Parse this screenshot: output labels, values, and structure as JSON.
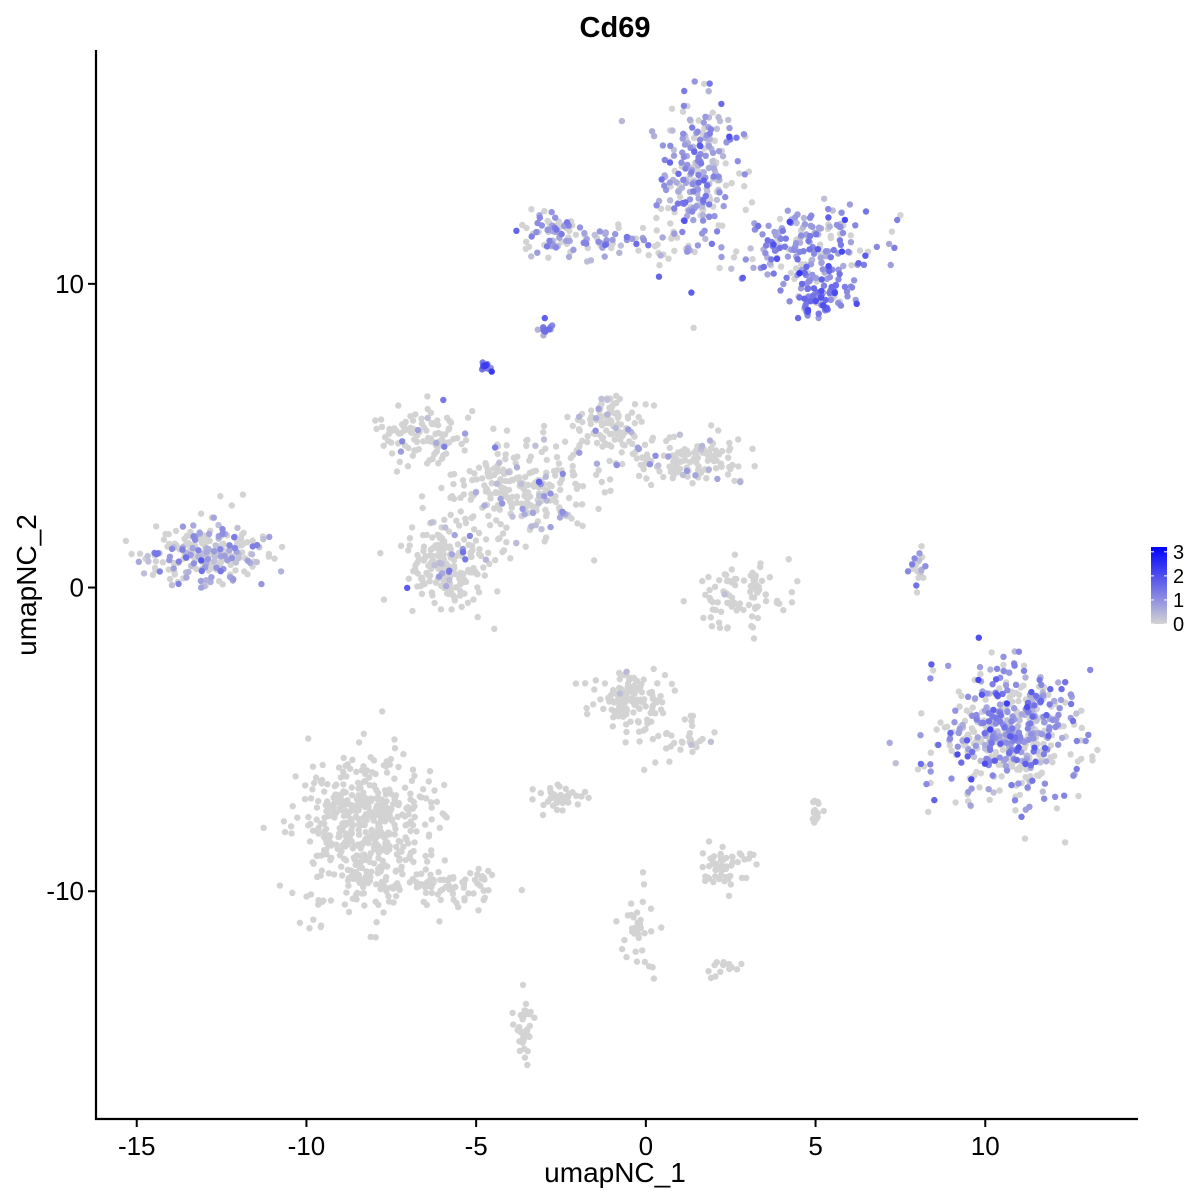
{
  "chart_data": {
    "type": "scatter",
    "title": "Cd69",
    "xlabel": "umapNC_1",
    "ylabel": "umapNC_2",
    "xlim": [
      -16.2,
      14.5
    ],
    "ylim": [
      -17.5,
      17.7
    ],
    "x_ticks": [
      -15,
      -10,
      -5,
      0,
      5,
      10
    ],
    "y_ticks": [
      -10,
      0,
      10
    ],
    "x_tick_labels": [
      "-15",
      "-10",
      "-5",
      "0",
      "5",
      "10"
    ],
    "y_tick_labels": [
      "-10",
      "0",
      "10"
    ],
    "grid": false,
    "legend": {
      "position": "right",
      "type": "colorbar",
      "min": 0,
      "max": 3.2,
      "ticks": [
        0,
        1,
        2,
        3
      ],
      "tick_labels": [
        "0",
        "1",
        "2",
        "3"
      ]
    },
    "colors": {
      "low": "#d3d3d3",
      "high": "#0000ff",
      "axis": "#000000"
    },
    "clusters": [
      {
        "id": "top-right-mass",
        "cx": 1.6,
        "cy": 13.6,
        "sx": 0.55,
        "sy": 1.25,
        "n": 240,
        "expr": 0.9,
        "p_expr": 0.7
      },
      {
        "id": "top-right-arm",
        "cx": 4.7,
        "cy": 11.3,
        "sx": 0.9,
        "sy": 0.6,
        "n": 190,
        "expr": 1.0,
        "p_expr": 0.75
      },
      {
        "id": "top-right-lobe",
        "cx": 5.2,
        "cy": 9.6,
        "sx": 0.45,
        "sy": 0.4,
        "n": 90,
        "expr": 1.1,
        "p_expr": 0.8
      },
      {
        "id": "top-bridge",
        "cx": -0.8,
        "cy": 11.4,
        "sx": 1.3,
        "sy": 0.3,
        "n": 70,
        "expr": 0.8,
        "p_expr": 0.6
      },
      {
        "id": "top-left-knob",
        "cx": -2.8,
        "cy": 11.7,
        "sx": 0.4,
        "sy": 0.35,
        "n": 60,
        "expr": 0.9,
        "p_expr": 0.55
      },
      {
        "id": "small-blob-a",
        "cx": -2.9,
        "cy": 8.5,
        "sx": 0.12,
        "sy": 0.12,
        "n": 12,
        "expr": 1.2,
        "p_expr": 0.8
      },
      {
        "id": "small-blob-b",
        "cx": -4.7,
        "cy": 7.3,
        "sx": 0.1,
        "sy": 0.1,
        "n": 14,
        "expr": 1.6,
        "p_expr": 0.9
      },
      {
        "id": "left-island",
        "cx": -13.0,
        "cy": 1.1,
        "sx": 0.95,
        "sy": 0.5,
        "n": 240,
        "expr": 0.7,
        "p_expr": 0.45
      },
      {
        "id": "center-hub",
        "cx": -3.6,
        "cy": 3.2,
        "sx": 1.0,
        "sy": 0.8,
        "n": 260,
        "expr": 0.6,
        "p_expr": 0.15
      },
      {
        "id": "center-upper-left-arm",
        "cx": -6.5,
        "cy": 5.0,
        "sx": 0.7,
        "sy": 0.45,
        "n": 110,
        "expr": 0.6,
        "p_expr": 0.08
      },
      {
        "id": "center-upper-right-arm",
        "cx": -1.1,
        "cy": 5.3,
        "sx": 0.55,
        "sy": 0.6,
        "n": 120,
        "expr": 0.6,
        "p_expr": 0.1
      },
      {
        "id": "center-right-arm",
        "cx": 1.4,
        "cy": 4.2,
        "sx": 0.9,
        "sy": 0.35,
        "n": 130,
        "expr": 0.6,
        "p_expr": 0.12
      },
      {
        "id": "center-lower-left-lobe",
        "cx": -5.9,
        "cy": 0.8,
        "sx": 0.6,
        "sy": 0.7,
        "n": 200,
        "expr": 0.6,
        "p_expr": 0.08
      },
      {
        "id": "mid-ring",
        "cx": 2.9,
        "cy": -0.2,
        "sx": 0.7,
        "sy": 0.55,
        "n": 90,
        "expr": 0.5,
        "p_expr": 0.05
      },
      {
        "id": "small-streak-right",
        "cx": 8.0,
        "cy": 0.5,
        "sx": 0.15,
        "sy": 0.4,
        "n": 20,
        "expr": 1.0,
        "p_expr": 0.6
      },
      {
        "id": "right-big-cluster",
        "cx": 10.7,
        "cy": -4.8,
        "sx": 1.0,
        "sy": 1.05,
        "n": 520,
        "expr": 1.0,
        "p_expr": 0.55
      },
      {
        "id": "mid-lower-cluster",
        "cx": -0.6,
        "cy": -3.6,
        "sx": 0.55,
        "sy": 0.45,
        "n": 130,
        "expr": 0.5,
        "p_expr": 0.03
      },
      {
        "id": "mid-lower-tail",
        "cx": 0.8,
        "cy": -4.9,
        "sx": 0.6,
        "sy": 0.4,
        "n": 40,
        "expr": 0.5,
        "p_expr": 0.03
      },
      {
        "id": "bottom-left-big",
        "cx": -8.3,
        "cy": -8.0,
        "sx": 0.95,
        "sy": 1.2,
        "n": 520,
        "expr": 0.4,
        "p_expr": 0.0
      },
      {
        "id": "bottom-left-tail",
        "cx": -5.6,
        "cy": -9.8,
        "sx": 0.7,
        "sy": 0.35,
        "n": 70,
        "expr": 0.4,
        "p_expr": 0.0
      },
      {
        "id": "bottom-mid-small",
        "cx": -2.5,
        "cy": -6.9,
        "sx": 0.3,
        "sy": 0.2,
        "n": 45,
        "expr": 0.4,
        "p_expr": 0.0
      },
      {
        "id": "bottom-mid-right",
        "cx": 2.4,
        "cy": -9.2,
        "sx": 0.35,
        "sy": 0.35,
        "n": 55,
        "expr": 0.4,
        "p_expr": 0.0
      },
      {
        "id": "bottom-streak",
        "cx": -0.2,
        "cy": -11.3,
        "sx": 0.25,
        "sy": 0.9,
        "n": 35,
        "expr": 0.4,
        "p_expr": 0.02
      },
      {
        "id": "bottom-bits-right",
        "cx": 2.2,
        "cy": -12.5,
        "sx": 0.35,
        "sy": 0.2,
        "n": 15,
        "expr": 0.4,
        "p_expr": 0.0
      },
      {
        "id": "bottom-bottom",
        "cx": -3.6,
        "cy": -14.5,
        "sx": 0.15,
        "sy": 0.6,
        "n": 40,
        "expr": 0.4,
        "p_expr": 0.0
      },
      {
        "id": "small-right-bits",
        "cx": 5.0,
        "cy": -7.3,
        "sx": 0.1,
        "sy": 0.2,
        "n": 15,
        "expr": 0.4,
        "p_expr": 0.0
      }
    ]
  }
}
